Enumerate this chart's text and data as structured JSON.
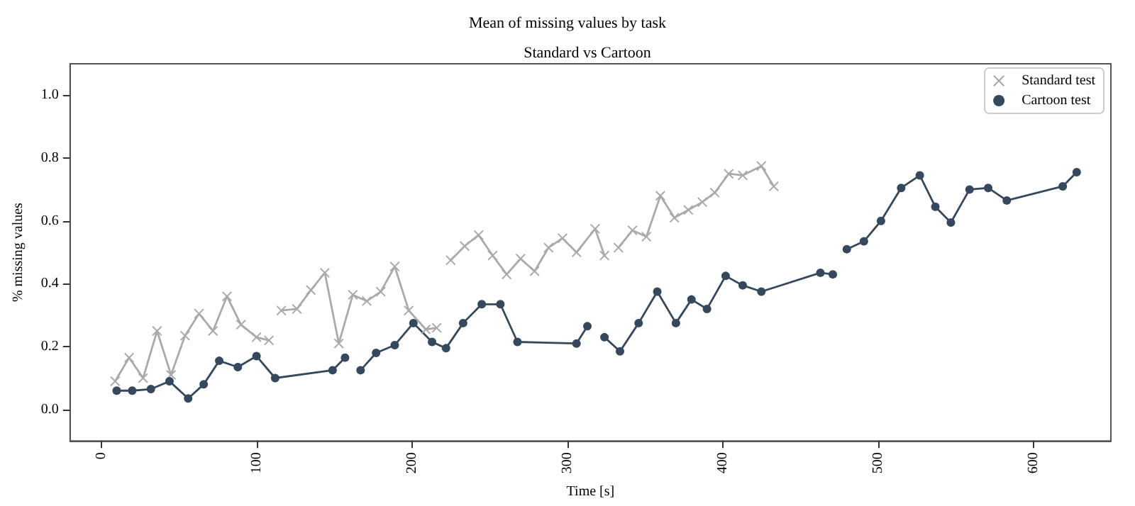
{
  "chart_data": {
    "type": "line",
    "title": "Mean of missing values by task",
    "subtitle": "Standard vs Cartoon",
    "xlabel": "Time [s]",
    "ylabel": "% missing values",
    "xlim": [
      -20,
      650
    ],
    "xticks": [
      0,
      100,
      200,
      300,
      400,
      500,
      600
    ],
    "ylim": [
      -0.1,
      1.1
    ],
    "yticks": [
      {
        "value": 0,
        "label": "0.0"
      },
      {
        "value": 0.2,
        "label": "0.2"
      },
      {
        "value": 0.4,
        "label": "0.4"
      },
      {
        "value": 0.6,
        "label": "0.6"
      },
      {
        "value": 0.8,
        "label": "0.8"
      },
      {
        "value": 1,
        "label": "1.0"
      }
    ],
    "legend": "top right",
    "line_style": "solid",
    "series": [
      {
        "name": "Standard test",
        "color": "#aaaaaa",
        "marker": "cross",
        "x": [
          9,
          18,
          27,
          36,
          45,
          54,
          63,
          72,
          81,
          90,
          100,
          108,
          112,
          116,
          126,
          135,
          144,
          153,
          162,
          171,
          180,
          189,
          198,
          209,
          216,
          220,
          225,
          234,
          243,
          252,
          261,
          270,
          279,
          288,
          297,
          306,
          318,
          324,
          328,
          333,
          342,
          351,
          360,
          369,
          378,
          387,
          395,
          404,
          413,
          425,
          433
        ],
        "values": [
          0.09,
          0.165,
          0.1,
          0.25,
          0.11,
          0.235,
          0.305,
          0.25,
          0.36,
          0.27,
          0.23,
          0.22,
          null,
          0.315,
          0.32,
          0.38,
          0.435,
          0.21,
          0.365,
          0.345,
          0.375,
          0.455,
          0.315,
          0.255,
          0.26,
          null,
          0.475,
          0.52,
          0.555,
          0.49,
          0.43,
          0.48,
          0.44,
          0.515,
          0.545,
          0.5,
          0.575,
          0.49,
          null,
          0.515,
          0.57,
          0.55,
          0.68,
          0.61,
          0.635,
          0.66,
          0.69,
          0.75,
          0.745,
          0.775,
          0.71
        ]
      },
      {
        "name": "Cartoon test",
        "color": "#34495e",
        "marker": "circle",
        "x": [
          10,
          20,
          32,
          44,
          56,
          66,
          76,
          88,
          100,
          112,
          149,
          157,
          162,
          167,
          177,
          189,
          201,
          213,
          222,
          233,
          245,
          257,
          268,
          306,
          313,
          318,
          324,
          334,
          346,
          358,
          370,
          380,
          390,
          402,
          413,
          425,
          463,
          471,
          476,
          480,
          491,
          502,
          515,
          527,
          537,
          547,
          559,
          571,
          583,
          619,
          628
        ],
        "values": [
          0.06,
          0.06,
          0.065,
          0.09,
          0.035,
          0.08,
          0.155,
          0.135,
          0.17,
          0.1,
          0.125,
          0.165,
          null,
          0.125,
          0.18,
          0.205,
          0.275,
          0.215,
          0.195,
          0.275,
          0.335,
          0.335,
          0.215,
          0.21,
          0.265,
          null,
          0.23,
          0.185,
          0.275,
          0.375,
          0.275,
          0.35,
          0.32,
          0.425,
          0.395,
          0.375,
          0.435,
          0.43,
          null,
          0.51,
          0.535,
          0.6,
          0.705,
          0.745,
          0.645,
          0.595,
          0.7,
          0.705,
          0.665,
          0.71,
          0.755
        ]
      }
    ]
  }
}
